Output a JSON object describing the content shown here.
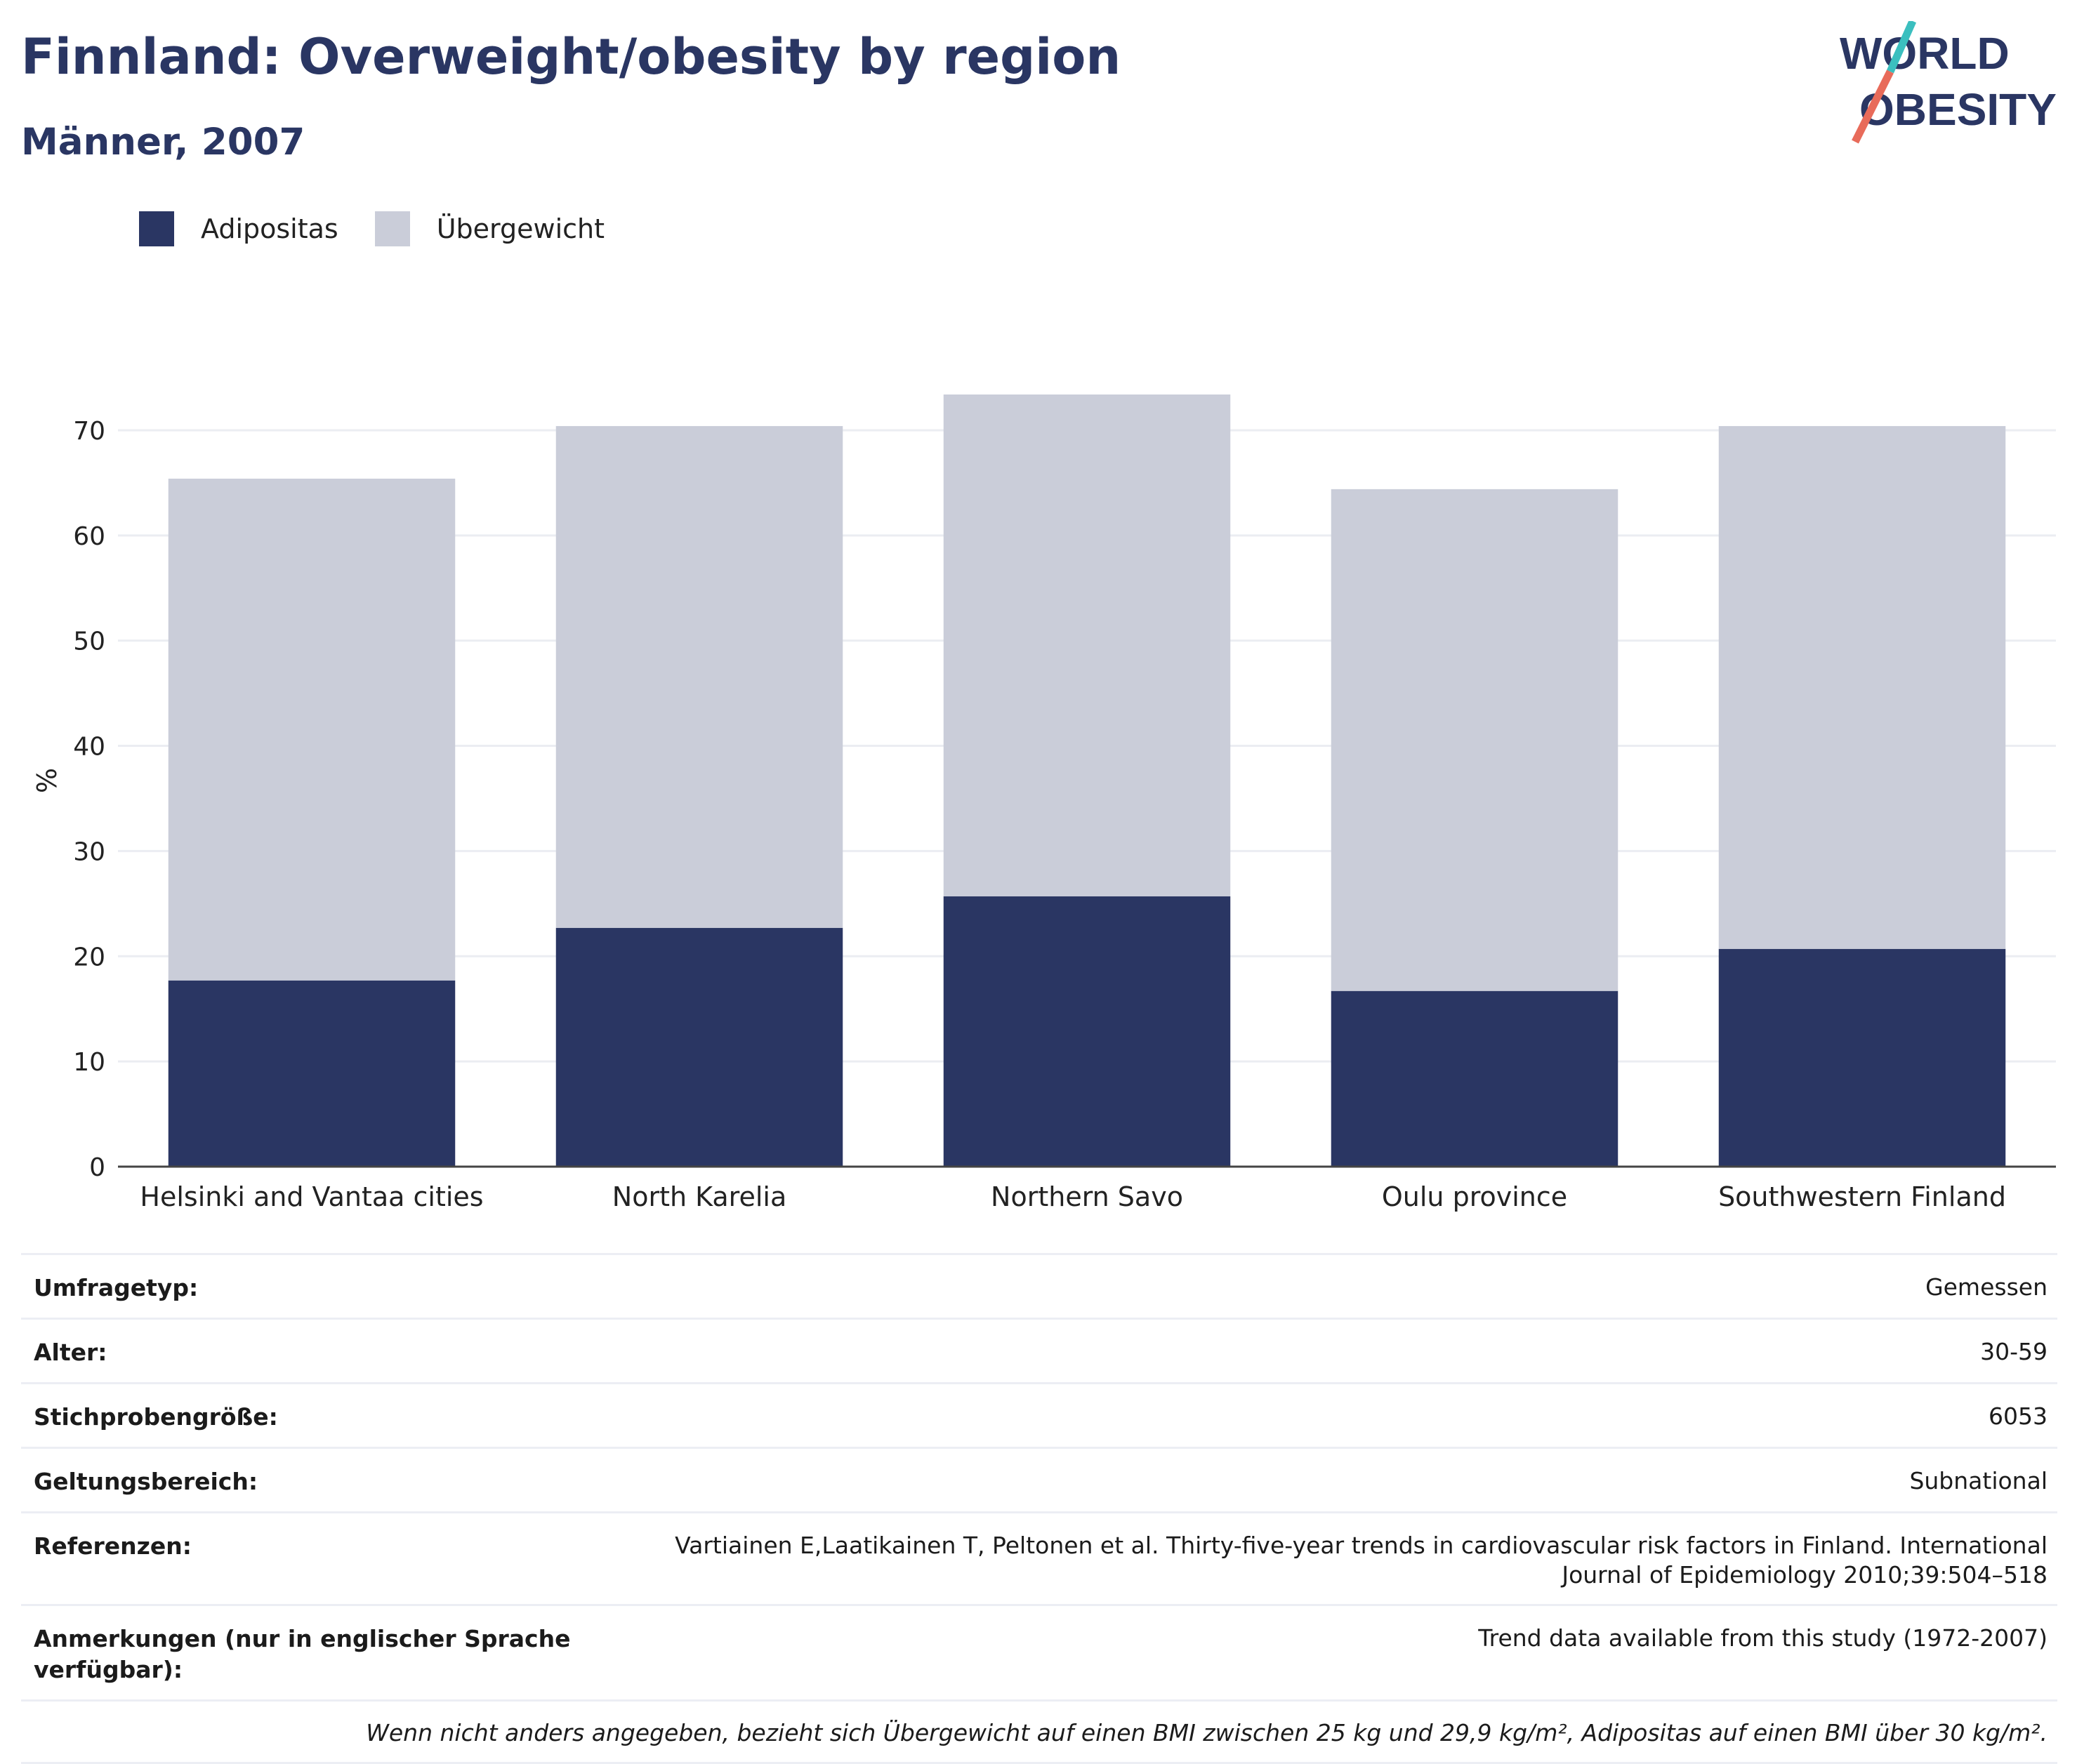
{
  "header": {
    "title": "Finnland: Overweight/obesity by region",
    "subtitle": "Männer, 2007"
  },
  "logo": {
    "line1": "WORLD",
    "line2": "OBESITY",
    "accent_colors": [
      "#3bbfbf",
      "#e86b5a"
    ]
  },
  "legend": [
    {
      "label": "Adipositas",
      "color": "#2a3663"
    },
    {
      "label": "Übergewicht",
      "color": "#cacdd9"
    }
  ],
  "chart_data": {
    "type": "bar",
    "stacked": true,
    "categories": [
      "Helsinki and Vantaa cities",
      "North Karelia",
      "Northern Savo",
      "Oulu province",
      "Southwestern Finland"
    ],
    "series": [
      {
        "name": "Adipositas",
        "color": "#2a3663",
        "values": [
          17.7,
          22.7,
          25.7,
          16.7,
          20.7
        ]
      },
      {
        "name": "Übergewicht",
        "color": "#cacdd9",
        "values": [
          47.7,
          47.7,
          47.7,
          47.7,
          49.7
        ]
      }
    ],
    "ylabel": "%",
    "ylim": [
      0,
      73.4
    ],
    "yticks": [
      0,
      10,
      20,
      30,
      40,
      50,
      60,
      70
    ],
    "grid": true
  },
  "meta": [
    {
      "key": "Umfragetyp:",
      "value": "Gemessen"
    },
    {
      "key": "Alter:",
      "value": "30-59"
    },
    {
      "key": "Stichprobengröße:",
      "value": "6053"
    },
    {
      "key": "Geltungsbereich:",
      "value": "Subnational"
    },
    {
      "key": "Referenzen:",
      "value": "Vartiainen E,Laatikainen T, Peltonen et al. Thirty-five-year trends in cardiovascular risk factors in Finland. International Journal of Epidemiology 2010;39:504–518"
    },
    {
      "key": "Anmerkungen (nur in englischer Sprache verfügbar):",
      "value": "Trend data available from this study (1972-2007)"
    }
  ],
  "footnote": "Wenn nicht anders angegeben, bezieht sich Übergewicht auf einen BMI zwischen 25 kg und 29,9 kg/m², Adipositas auf einen BMI über 30 kg/m²."
}
